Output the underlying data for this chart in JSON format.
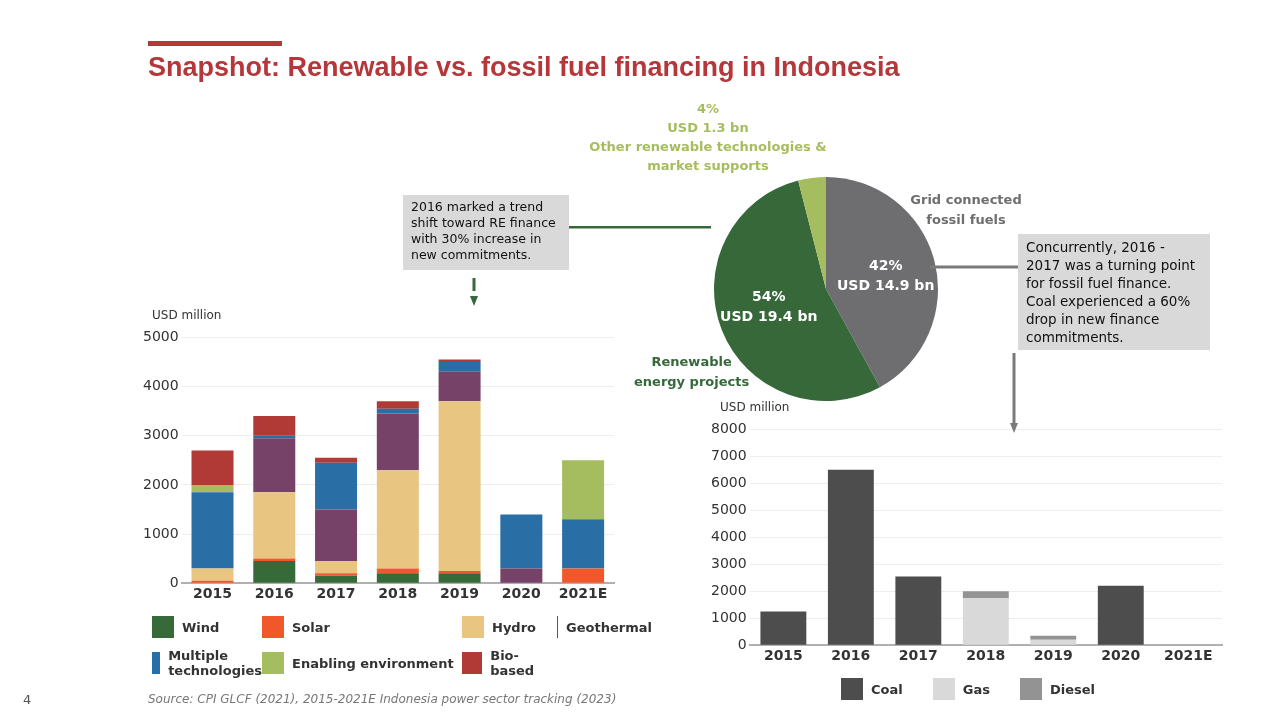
{
  "chart_data": [
    {
      "type": "bar",
      "title": "Snapshot: Renewable vs. fossil fuel financing in Indonesia",
      "ylabel": "USD million",
      "categories": [
        "2015",
        "2016",
        "2017",
        "2018",
        "2019",
        "2020",
        "2021E"
      ],
      "stacked": true,
      "ylim": [
        0,
        5000
      ],
      "yticks": [
        0,
        1000,
        2000,
        3000,
        4000,
        5000
      ],
      "grid": "y",
      "legend": "bottom",
      "series": [
        {
          "name": "Wind",
          "color": "#366a39",
          "values": [
            0,
            450,
            150,
            200,
            200,
            0,
            0
          ]
        },
        {
          "name": "Solar",
          "color": "#f0582c",
          "values": [
            50,
            50,
            50,
            100,
            50,
            0,
            300
          ]
        },
        {
          "name": "Hydro",
          "color": "#e8c682",
          "values": [
            250,
            1350,
            250,
            2000,
            3450,
            0,
            0
          ]
        },
        {
          "name": "Geothermal",
          "color": "#764268",
          "values": [
            0,
            1100,
            1050,
            1150,
            600,
            300,
            0
          ]
        },
        {
          "name": "Multiple technologies",
          "color": "#2a6ea6",
          "values": [
            1550,
            50,
            950,
            100,
            200,
            1100,
            1000
          ]
        },
        {
          "name": "Enabling environment",
          "color": "#a6bd5f",
          "values": [
            150,
            0,
            0,
            0,
            0,
            0,
            1200
          ]
        },
        {
          "name": "Bio-based",
          "color": "#b23a36",
          "values": [
            700,
            400,
            100,
            150,
            50,
            0,
            0
          ]
        }
      ],
      "annotations": [
        "2016 marked a trend shift toward RE finance with 30% increase in new commitments.",
        "Source: CPI GLCF (2021), 2015-2021E Indonesia power sector tracking (2023)",
        "4"
      ]
    },
    {
      "type": "pie",
      "categories": [
        "Grid connected fossil fuels",
        "Renewable energy projects",
        "Other renewable technologies & market supports"
      ],
      "values": [
        42,
        54,
        4
      ],
      "colors": [
        "#6e6e70",
        "#36683a",
        "#a6bd5f"
      ],
      "value_labels": [
        "42%\nUSD 14.9 bn",
        "54%\nUSD 19.4 bn",
        "4%\nUSD 1.3 bn"
      ],
      "legend": false
    },
    {
      "type": "bar",
      "ylabel": "USD million",
      "categories": [
        "2015",
        "2016",
        "2017",
        "2018",
        "2019",
        "2020",
        "2021E"
      ],
      "stacked": true,
      "ylim": [
        0,
        8000
      ],
      "yticks": [
        0,
        1000,
        2000,
        3000,
        4000,
        5000,
        6000,
        7000,
        8000
      ],
      "grid": "y",
      "legend": "bottom",
      "series": [
        {
          "name": "Coal",
          "color": "#4d4d4d",
          "values": [
            1250,
            6500,
            2550,
            0,
            0,
            2200,
            null
          ]
        },
        {
          "name": "Gas",
          "color": "#d9d9d9",
          "values": [
            0,
            0,
            0,
            1750,
            200,
            0,
            null
          ]
        },
        {
          "name": "Diesel",
          "color": "#939393",
          "values": [
            0,
            0,
            0,
            250,
            150,
            0,
            null
          ]
        }
      ],
      "annotations": [
        "Concurrently, 2016 - 2017 was a turning point for fossil fuel finance. Coal experienced a 60% drop in new finance commitments."
      ]
    }
  ]
}
